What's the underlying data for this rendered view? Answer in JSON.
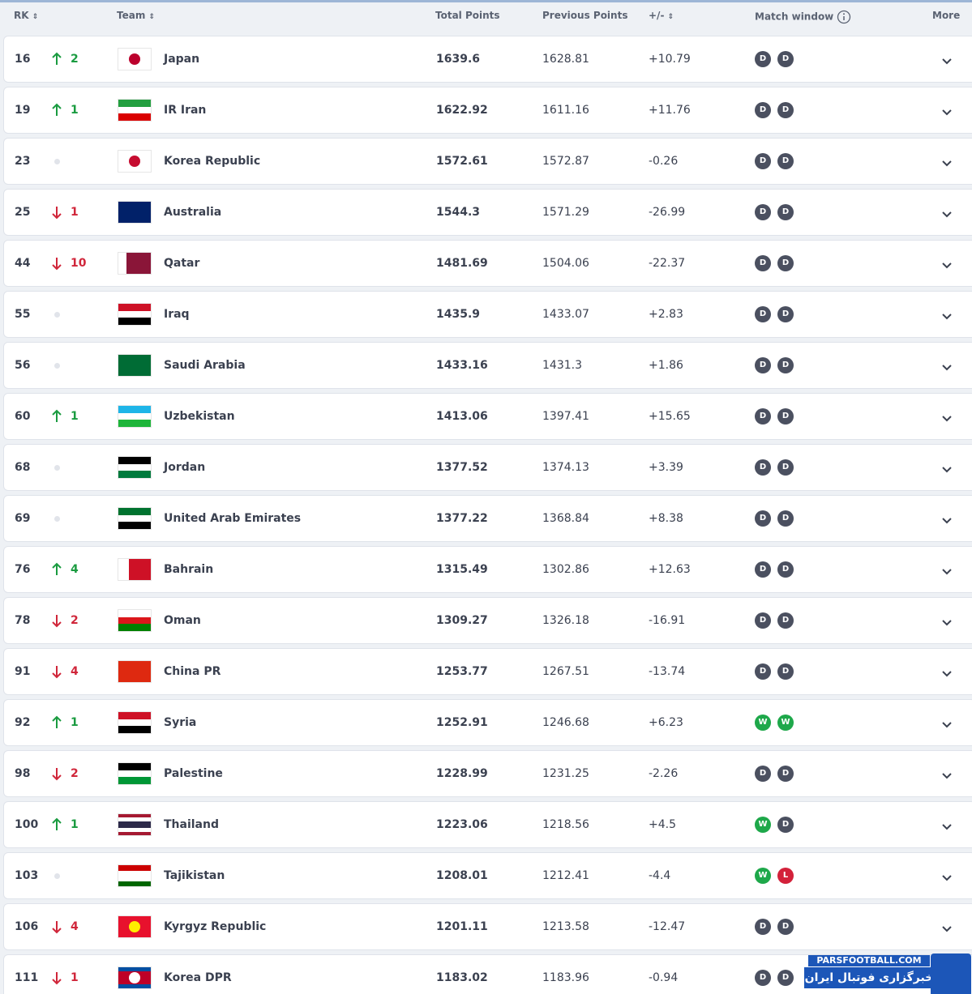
{
  "header": {
    "rank": "RK",
    "team": "Team",
    "total": "Total Points",
    "previous": "Previous Points",
    "diff": "+/-",
    "window": "Match window",
    "more": "More"
  },
  "rows": [
    {
      "rank": 16,
      "dir": "up",
      "change": 2,
      "team": "Japan",
      "flag": {
        "dir": "h",
        "stripes": [
          "#ffffff"
        ],
        "dot": "#bc002d"
      },
      "total": 1639.6,
      "previous": 1628.81,
      "diff": "+10.79",
      "window": [
        {
          "label": "D",
          "color": "#4b5060"
        },
        {
          "label": "D",
          "color": "#4b5060"
        }
      ]
    },
    {
      "rank": 19,
      "dir": "up",
      "change": 1,
      "team": "IR Iran",
      "flag": {
        "dir": "h",
        "stripes": [
          "#239f40",
          "#ffffff",
          "#da0000"
        ]
      },
      "total": 1622.92,
      "previous": 1611.16,
      "diff": "+11.76",
      "window": [
        {
          "label": "D",
          "color": "#4b5060"
        },
        {
          "label": "D",
          "color": "#4b5060"
        }
      ]
    },
    {
      "rank": 23,
      "dir": "none",
      "team": "Korea Republic",
      "flag": {
        "dir": "h",
        "stripes": [
          "#ffffff"
        ],
        "dot": "#c60c30"
      },
      "total": 1572.61,
      "previous": 1572.87,
      "diff": "-0.26",
      "window": [
        {
          "label": "D",
          "color": "#4b5060"
        },
        {
          "label": "D",
          "color": "#4b5060"
        }
      ]
    },
    {
      "rank": 25,
      "dir": "down",
      "change": 1,
      "team": "Australia",
      "flag": {
        "dir": "h",
        "stripes": [
          "#012169"
        ]
      },
      "total": 1544.3,
      "previous": 1571.29,
      "diff": "-26.99",
      "window": [
        {
          "label": "D",
          "color": "#4b5060"
        },
        {
          "label": "D",
          "color": "#4b5060"
        }
      ]
    },
    {
      "rank": 44,
      "dir": "down",
      "change": 10,
      "team": "Qatar",
      "flag": {
        "dir": "v",
        "stripes": [
          "#ffffff",
          "#8a1538",
          "#8a1538",
          "#8a1538"
        ]
      },
      "total": 1481.69,
      "previous": 1504.06,
      "diff": "-22.37",
      "window": [
        {
          "label": "D",
          "color": "#4b5060"
        },
        {
          "label": "D",
          "color": "#4b5060"
        }
      ]
    },
    {
      "rank": 55,
      "dir": "none",
      "team": "Iraq",
      "flag": {
        "dir": "h",
        "stripes": [
          "#ce1126",
          "#ffffff",
          "#000000"
        ]
      },
      "total": 1435.9,
      "previous": 1433.07,
      "diff": "+2.83",
      "window": [
        {
          "label": "D",
          "color": "#4b5060"
        },
        {
          "label": "D",
          "color": "#4b5060"
        }
      ]
    },
    {
      "rank": 56,
      "dir": "none",
      "team": "Saudi Arabia",
      "flag": {
        "dir": "h",
        "stripes": [
          "#006c35"
        ]
      },
      "total": 1433.16,
      "previous": 1431.3,
      "diff": "+1.86",
      "window": [
        {
          "label": "D",
          "color": "#4b5060"
        },
        {
          "label": "D",
          "color": "#4b5060"
        }
      ]
    },
    {
      "rank": 60,
      "dir": "up",
      "change": 1,
      "team": "Uzbekistan",
      "flag": {
        "dir": "h",
        "stripes": [
          "#1eb5e8",
          "#ffffff",
          "#1eb53a"
        ]
      },
      "total": 1413.06,
      "previous": 1397.41,
      "diff": "+15.65",
      "window": [
        {
          "label": "D",
          "color": "#4b5060"
        },
        {
          "label": "D",
          "color": "#4b5060"
        }
      ]
    },
    {
      "rank": 68,
      "dir": "none",
      "team": "Jordan",
      "flag": {
        "dir": "h",
        "stripes": [
          "#000000",
          "#ffffff",
          "#007a3d"
        ]
      },
      "total": 1377.52,
      "previous": 1374.13,
      "diff": "+3.39",
      "window": [
        {
          "label": "D",
          "color": "#4b5060"
        },
        {
          "label": "D",
          "color": "#4b5060"
        }
      ]
    },
    {
      "rank": 69,
      "dir": "none",
      "team": "United Arab Emirates",
      "flag": {
        "dir": "h",
        "stripes": [
          "#00732f",
          "#ffffff",
          "#000000"
        ]
      },
      "total": 1377.22,
      "previous": 1368.84,
      "diff": "+8.38",
      "window": [
        {
          "label": "D",
          "color": "#4b5060"
        },
        {
          "label": "D",
          "color": "#4b5060"
        }
      ]
    },
    {
      "rank": 76,
      "dir": "up",
      "change": 4,
      "team": "Bahrain",
      "flag": {
        "dir": "v",
        "stripes": [
          "#ffffff",
          "#ce1126",
          "#ce1126"
        ]
      },
      "total": 1315.49,
      "previous": 1302.86,
      "diff": "+12.63",
      "window": [
        {
          "label": "D",
          "color": "#4b5060"
        },
        {
          "label": "D",
          "color": "#4b5060"
        }
      ]
    },
    {
      "rank": 78,
      "dir": "down",
      "change": 2,
      "team": "Oman",
      "flag": {
        "dir": "h",
        "stripes": [
          "#ffffff",
          "#db161b",
          "#008000"
        ]
      },
      "total": 1309.27,
      "previous": 1326.18,
      "diff": "-16.91",
      "window": [
        {
          "label": "D",
          "color": "#4b5060"
        },
        {
          "label": "D",
          "color": "#4b5060"
        }
      ]
    },
    {
      "rank": 91,
      "dir": "down",
      "change": 4,
      "team": "China PR",
      "flag": {
        "dir": "h",
        "stripes": [
          "#de2910"
        ]
      },
      "total": 1253.77,
      "previous": 1267.51,
      "diff": "-13.74",
      "window": [
        {
          "label": "D",
          "color": "#4b5060"
        },
        {
          "label": "D",
          "color": "#4b5060"
        }
      ]
    },
    {
      "rank": 92,
      "dir": "up",
      "change": 1,
      "team": "Syria",
      "flag": {
        "dir": "h",
        "stripes": [
          "#ce1126",
          "#ffffff",
          "#000000"
        ]
      },
      "total": 1252.91,
      "previous": 1246.68,
      "diff": "+6.23",
      "window": [
        {
          "label": "W",
          "color": "#1ea84a"
        },
        {
          "label": "W",
          "color": "#1ea84a"
        }
      ]
    },
    {
      "rank": 98,
      "dir": "down",
      "change": 2,
      "team": "Palestine",
      "flag": {
        "dir": "h",
        "stripes": [
          "#000000",
          "#ffffff",
          "#009736"
        ]
      },
      "total": 1228.99,
      "previous": 1231.25,
      "diff": "-2.26",
      "window": [
        {
          "label": "D",
          "color": "#4b5060"
        },
        {
          "label": "D",
          "color": "#4b5060"
        }
      ]
    },
    {
      "rank": 100,
      "dir": "up",
      "change": 1,
      "team": "Thailand",
      "flag": {
        "dir": "h",
        "stripes": [
          "#a51931",
          "#ffffff",
          "#2d2a4a",
          "#2d2a4a",
          "#ffffff",
          "#a51931"
        ]
      },
      "total": 1223.06,
      "previous": 1218.56,
      "diff": "+4.5",
      "window": [
        {
          "label": "W",
          "color": "#1ea84a"
        },
        {
          "label": "D",
          "color": "#4b5060"
        }
      ]
    },
    {
      "rank": 103,
      "dir": "none",
      "team": "Tajikistan",
      "flag": {
        "dir": "h",
        "stripes": [
          "#cc0000",
          "#ffffff",
          "#ffffff",
          "#006600"
        ]
      },
      "total": 1208.01,
      "previous": 1212.41,
      "diff": "-4.4",
      "window": [
        {
          "label": "W",
          "color": "#1ea84a"
        },
        {
          "label": "L",
          "color": "#d3213a"
        }
      ]
    },
    {
      "rank": 106,
      "dir": "down",
      "change": 4,
      "team": "Kyrgyz Republic",
      "flag": {
        "dir": "h",
        "stripes": [
          "#e8112d"
        ],
        "dot": "#ffef00"
      },
      "total": 1201.11,
      "previous": 1213.58,
      "diff": "-12.47",
      "window": [
        {
          "label": "D",
          "color": "#4b5060"
        },
        {
          "label": "D",
          "color": "#4b5060"
        }
      ]
    },
    {
      "rank": 111,
      "dir": "down",
      "change": 1,
      "team": "Korea DPR",
      "flag": {
        "dir": "h",
        "stripes": [
          "#024fa2",
          "#be0027",
          "#be0027",
          "#be0027",
          "#024fa2"
        ],
        "dot": "#ffffff"
      },
      "total": 1183.02,
      "previous": 1183.96,
      "diff": "-0.94",
      "window": [
        {
          "label": "D",
          "color": "#4b5060"
        },
        {
          "label": "D",
          "color": "#4b5060"
        }
      ]
    }
  ],
  "watermark": {
    "site": "PARSFOOTBALL.COM",
    "text": "خبرگزاری فوتبال ایران"
  }
}
